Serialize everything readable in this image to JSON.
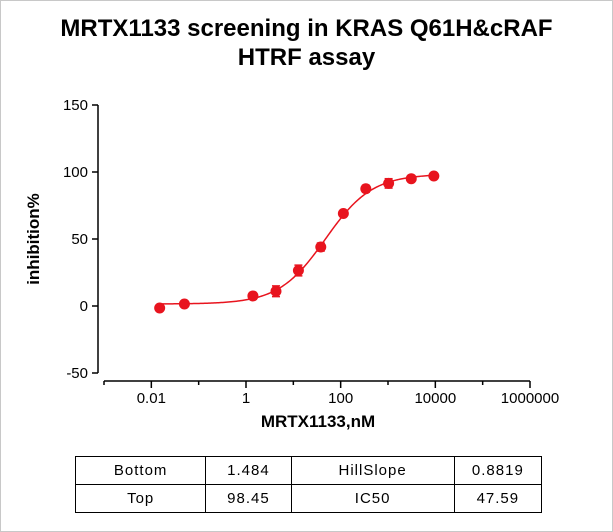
{
  "chart_data": {
    "type": "scatter",
    "title": [
      "MRTX1133 screening in KRAS Q61H&cRAF",
      "HTRF assay"
    ],
    "xlabel": "MRTX1133,nM",
    "ylabel": "inhibition%",
    "x_scale": "log",
    "xlim": [
      0.001,
      1000000
    ],
    "ylim": [
      -50,
      150
    ],
    "x_ticks": [
      0.01,
      1,
      100,
      10000,
      1000000
    ],
    "x_tick_labels": [
      "0.01",
      "1",
      "100",
      "10000",
      "1000000"
    ],
    "y_ticks": [
      -50,
      0,
      50,
      100,
      150
    ],
    "y_tick_labels": [
      "-50",
      "0",
      "50",
      "100",
      "150"
    ],
    "grid": false,
    "color": "#e8141e",
    "points": [
      {
        "x": 0.015,
        "y": -1.5,
        "err": 2
      },
      {
        "x": 0.05,
        "y": 1.5,
        "err": 2
      },
      {
        "x": 1.4,
        "y": 7.5,
        "err": 2.5
      },
      {
        "x": 4.3,
        "y": 11,
        "err": 4
      },
      {
        "x": 12.8,
        "y": 26.5,
        "err": 4
      },
      {
        "x": 38,
        "y": 44,
        "err": 3
      },
      {
        "x": 114,
        "y": 69,
        "err": 2
      },
      {
        "x": 340,
        "y": 87.5,
        "err": 2.5
      },
      {
        "x": 1030,
        "y": 91.5,
        "err": 3.5
      },
      {
        "x": 3100,
        "y": 95,
        "err": 2
      },
      {
        "x": 9300,
        "y": 97,
        "err": 1.5
      }
    ],
    "fit": {
      "bottom": 1.484,
      "top": 98.45,
      "ic50": 47.59,
      "hill_slope": 0.8819
    }
  },
  "params_table": {
    "rows": [
      [
        "Bottom",
        "1.484",
        "HillSlope",
        "0.8819"
      ],
      [
        "Top",
        "98.45",
        "IC50",
        "47.59"
      ]
    ]
  }
}
